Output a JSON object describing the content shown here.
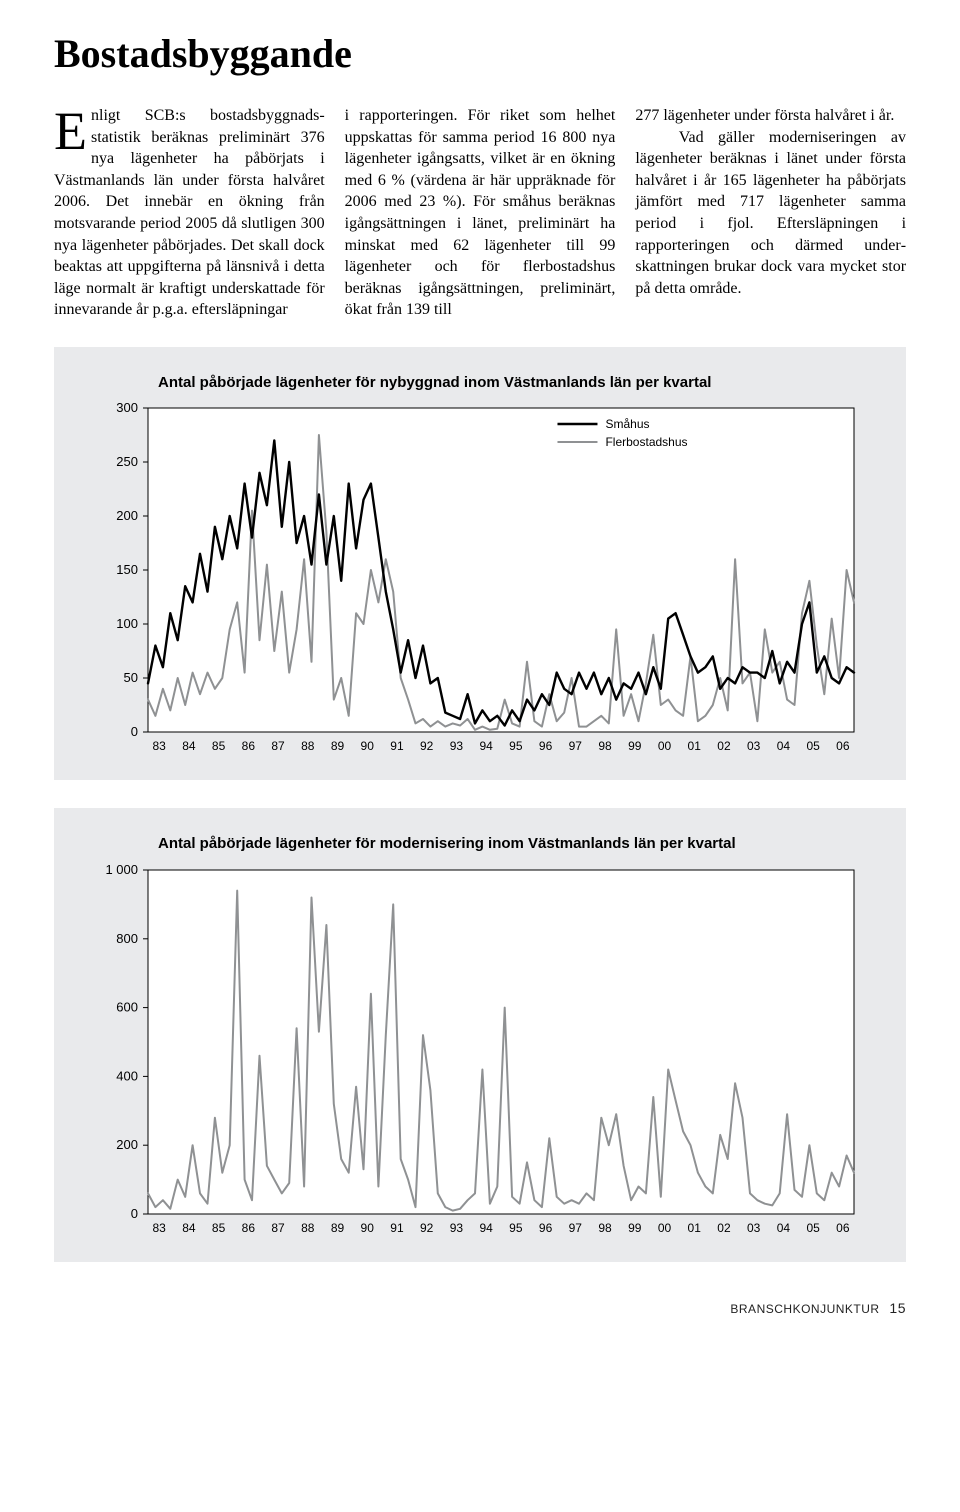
{
  "page": {
    "title": "Bostadsbyggande",
    "footer_label": "BRANSCHKONJUNKTUR",
    "footer_page": "15"
  },
  "body": {
    "col1_dropcap": "E",
    "col1": "nligt SCB:s bostadsbyggnads­statistik beräknas preliminärt 376 nya lägenheter ha påbör­jats i Västmanlands län under första halvåret 2006. Det innebär en ök­ning från motsvarande period 2005 då slutligen 300 nya lägenheter på­börjades. Det skall dock beaktas att uppgifterna på länsnivå i detta läge normalt är kraftigt underskattade för innevarande år p.g.a. eftersläpningar",
    "col2": "i rapporteringen. För riket som helhet uppskattas för samma period 16 800 nya lägenheter igångsatts, vilket är en ökning med 6 % (värdena är här uppräknade för 2006 med 23 %). För småhus beräknas igångsättningen i länet, preliminärt ha minskat med 62 lägenheter till 99 lägenheter och för flerbostadshus beräknas igångsätt­ningen, preliminärt, ökat från 139 till",
    "col3": "277 lägenheter under första halvåret i år.\n   Vad gäller moderniseringen av lägenheter beräknas i länet under första halvåret i år 165 lägenheter ha påbörjats jämfört med 717 lägenheter samma period i fjol. Eftersläpningen i rapporteringen och därmed under­skattningen brukar dock vara mycket stor på detta område."
  },
  "chart1": {
    "type": "line",
    "title": "Antal påbörjade lägenheter för nybyggnad inom Västmanlands län per kvartal",
    "legend": {
      "series1": "Småhus",
      "series2": "Flerbostadshus"
    },
    "colors": {
      "series1": "#000000",
      "series2": "#8f9193",
      "axis": "#000000",
      "bg": "#e9eaec",
      "plot_bg": "#ffffff",
      "tick_font": "#000000"
    },
    "ylim": [
      0,
      300
    ],
    "ytick_step": 50,
    "yticks": [
      0,
      50,
      100,
      150,
      200,
      250,
      300
    ],
    "x_labels": [
      "83",
      "84",
      "85",
      "86",
      "87",
      "88",
      "89",
      "90",
      "91",
      "92",
      "93",
      "94",
      "95",
      "96",
      "97",
      "98",
      "99",
      "00",
      "01",
      "02",
      "03",
      "04",
      "05",
      "06"
    ],
    "line_width_series1": 2.4,
    "line_width_series2": 2.0,
    "series1_values": [
      45,
      80,
      60,
      110,
      85,
      135,
      120,
      165,
      130,
      190,
      160,
      200,
      170,
      230,
      180,
      240,
      210,
      270,
      190,
      250,
      175,
      200,
      155,
      220,
      155,
      200,
      140,
      230,
      170,
      215,
      230,
      180,
      130,
      95,
      55,
      85,
      50,
      80,
      45,
      50,
      18,
      15,
      12,
      35,
      8,
      20,
      10,
      15,
      6,
      20,
      10,
      30,
      20,
      35,
      25,
      55,
      40,
      35,
      55,
      40,
      55,
      35,
      50,
      30,
      45,
      40,
      55,
      35,
      60,
      40,
      105,
      110,
      90,
      70,
      55,
      60,
      70,
      40,
      50,
      45,
      60,
      55,
      55,
      50,
      75,
      45,
      65,
      55,
      100,
      120,
      55,
      70,
      50,
      45,
      60,
      55
    ],
    "series2_values": [
      30,
      15,
      40,
      20,
      50,
      25,
      55,
      35,
      55,
      40,
      50,
      95,
      120,
      55,
      205,
      85,
      155,
      75,
      130,
      55,
      95,
      160,
      65,
      275,
      185,
      30,
      50,
      15,
      110,
      100,
      150,
      120,
      160,
      130,
      50,
      30,
      8,
      12,
      5,
      10,
      5,
      8,
      6,
      12,
      2,
      5,
      2,
      3,
      30,
      8,
      5,
      65,
      10,
      5,
      35,
      10,
      18,
      50,
      5,
      5,
      10,
      15,
      8,
      95,
      15,
      35,
      10,
      45,
      90,
      25,
      30,
      20,
      15,
      70,
      10,
      15,
      25,
      50,
      20,
      160,
      45,
      55,
      10,
      95,
      55,
      65,
      30,
      25,
      110,
      140,
      80,
      35,
      105,
      50,
      150,
      120
    ]
  },
  "chart2": {
    "type": "line",
    "title": "Antal påbörjade lägenheter för modernisering inom Västmanlands län per kvartal",
    "colors": {
      "series1": "#8f9193",
      "axis": "#000000",
      "plot_bg": "#ffffff",
      "tick_font": "#000000"
    },
    "ylim": [
      0,
      1000
    ],
    "ytick_step": 200,
    "yticks": [
      0,
      200,
      400,
      600,
      800,
      1000
    ],
    "x_labels": [
      "83",
      "84",
      "85",
      "86",
      "87",
      "88",
      "89",
      "90",
      "91",
      "92",
      "93",
      "94",
      "95",
      "96",
      "97",
      "98",
      "99",
      "00",
      "01",
      "02",
      "03",
      "04",
      "05",
      "06"
    ],
    "line_width": 2.0,
    "values": [
      60,
      20,
      40,
      15,
      100,
      50,
      200,
      60,
      30,
      280,
      120,
      200,
      940,
      100,
      40,
      460,
      140,
      100,
      60,
      90,
      540,
      80,
      920,
      530,
      840,
      320,
      160,
      120,
      370,
      130,
      640,
      80,
      520,
      900,
      160,
      100,
      20,
      520,
      360,
      60,
      20,
      10,
      15,
      40,
      60,
      420,
      30,
      80,
      600,
      50,
      30,
      150,
      40,
      20,
      220,
      50,
      30,
      40,
      30,
      60,
      40,
      280,
      200,
      290,
      140,
      40,
      80,
      60,
      340,
      50,
      420,
      330,
      240,
      200,
      120,
      80,
      60,
      230,
      160,
      380,
      280,
      60,
      40,
      30,
      25,
      60,
      290,
      70,
      50,
      200,
      60,
      40,
      120,
      80,
      170,
      120
    ]
  }
}
